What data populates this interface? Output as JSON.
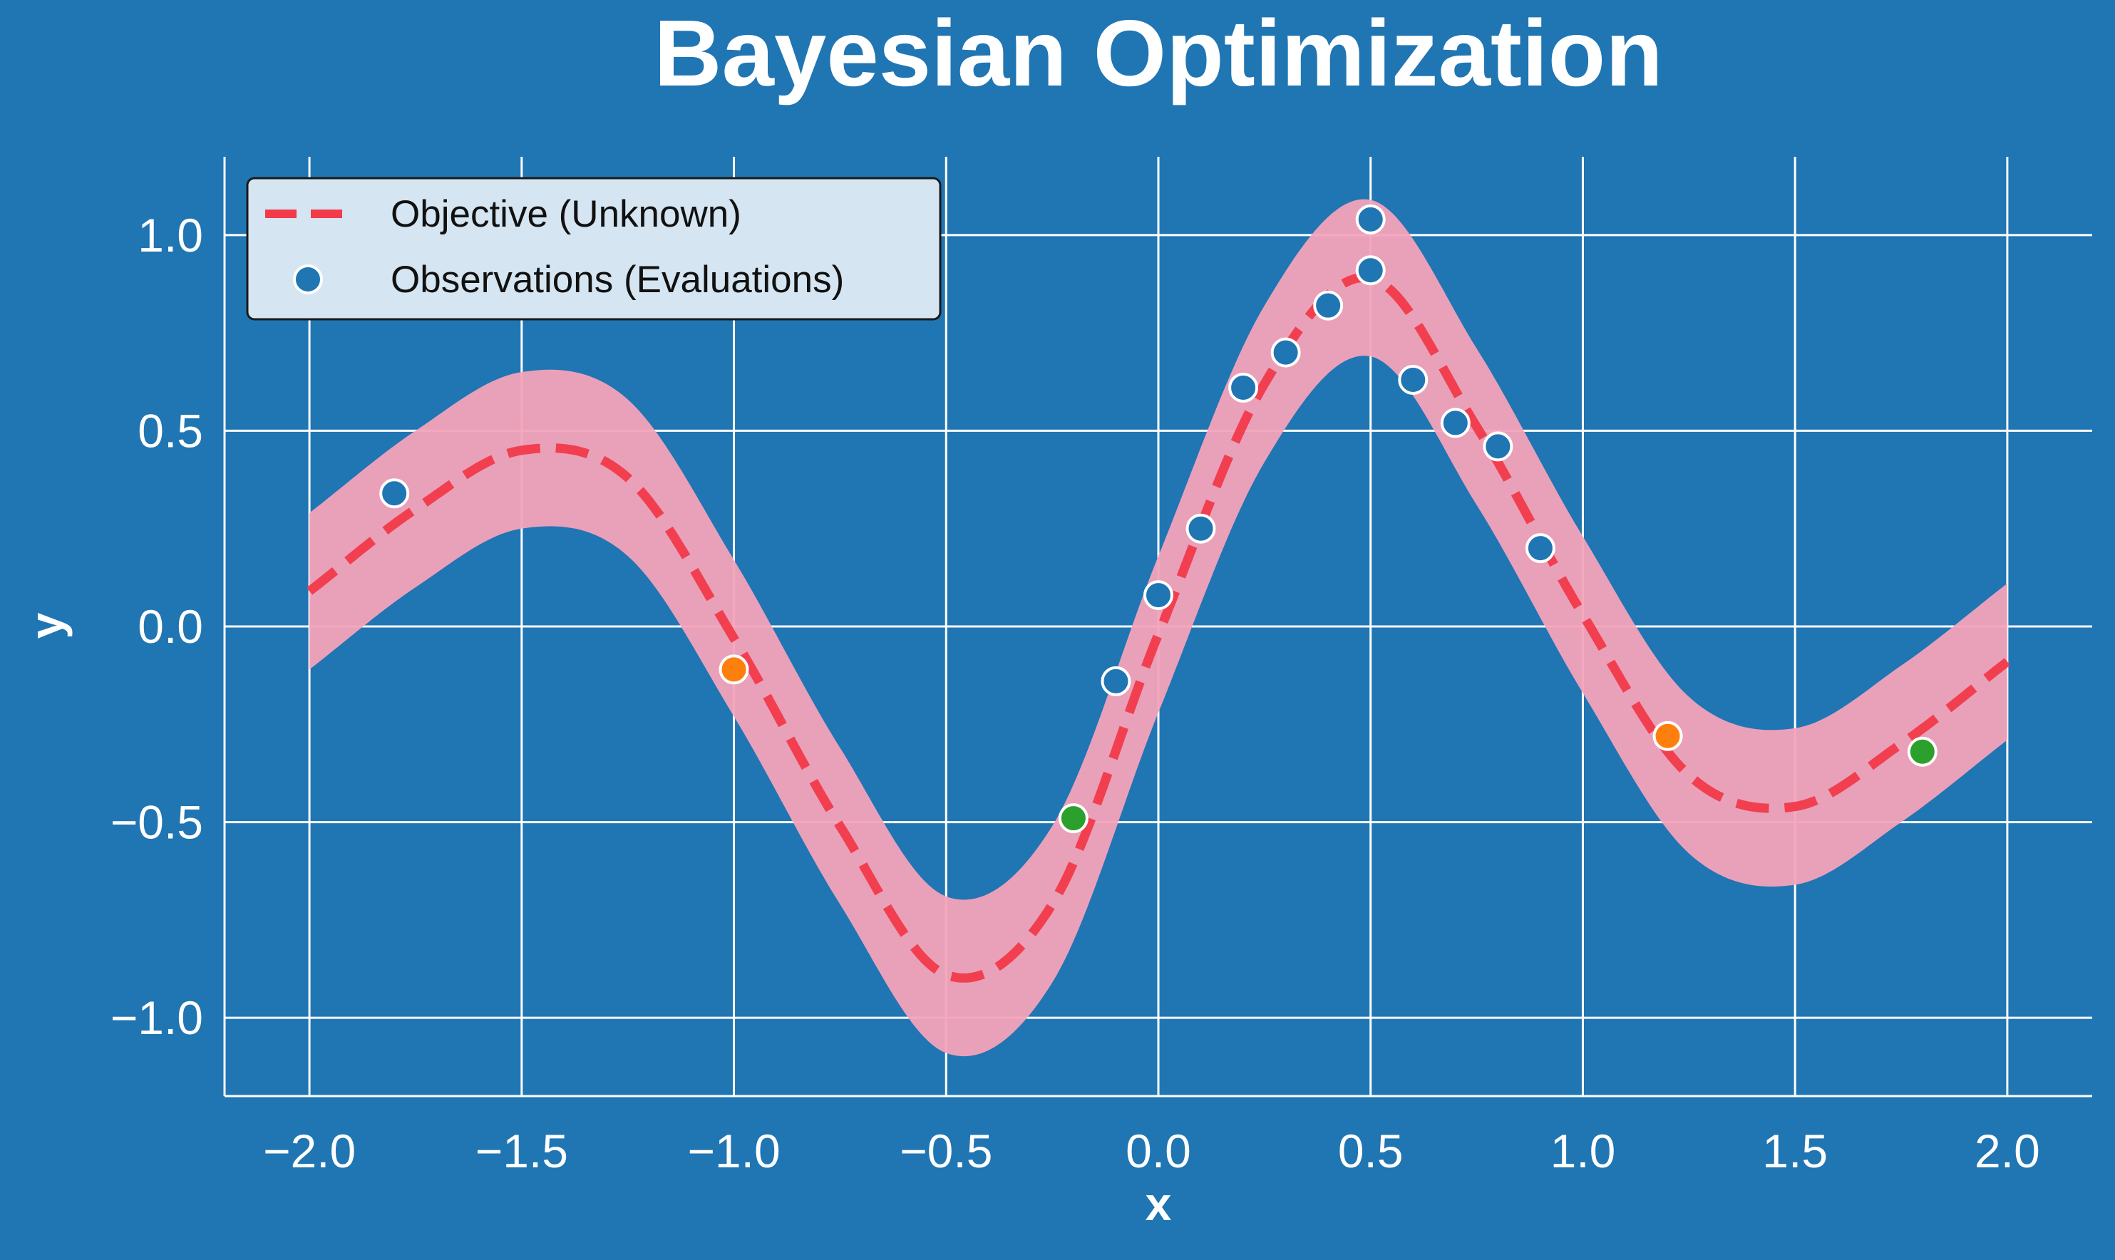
{
  "chart_data": {
    "type": "line",
    "title": "Bayesian Optimization",
    "xlabel": "x",
    "ylabel": "y",
    "xlim": [
      -2.2,
      2.2
    ],
    "ylim": [
      -1.2,
      1.2
    ],
    "x_ticks": [
      -2.0,
      -1.5,
      -1.0,
      -0.5,
      0.0,
      0.5,
      1.0,
      1.5,
      2.0
    ],
    "x_tick_labels": [
      "−2.0",
      "−1.5",
      "−1.0",
      "−0.5",
      "0.0",
      "0.5",
      "1.0",
      "1.5",
      "2.0"
    ],
    "y_ticks": [
      -1.0,
      -0.5,
      0.0,
      0.5,
      1.0
    ],
    "y_tick_labels": [
      "−1.0",
      "−0.5",
      "0.0",
      "0.5",
      "1.0"
    ],
    "grid": true,
    "legend_position": "top-left",
    "legend": [
      {
        "label": "Objective (Unknown)",
        "marker": "dashed-line",
        "color": "#f23a4a"
      },
      {
        "label": "Observations (Evaluations)",
        "marker": "circle",
        "color": "#2075b3"
      }
    ],
    "objective": {
      "x_range": [
        -2.0,
        2.0
      ],
      "band_halfwidth": 0.2,
      "line_color": "#f23a4a",
      "band_color": "#f4a3bb",
      "x": [
        -2.0,
        -1.75,
        -1.5,
        -1.25,
        -1.0,
        -0.75,
        -0.5,
        -0.25,
        0.0,
        0.25,
        0.5,
        0.75,
        1.0,
        1.25,
        1.5,
        1.75,
        2.0
      ],
      "y": [
        0.09,
        0.3,
        0.45,
        0.38,
        -0.03,
        -0.51,
        -0.89,
        -0.71,
        -0.02,
        0.62,
        0.89,
        0.51,
        0.03,
        -0.38,
        -0.46,
        -0.3,
        -0.09
      ]
    },
    "observations": [
      {
        "x": -1.8,
        "y": 0.34,
        "color": "#2075b3"
      },
      {
        "x": -1.0,
        "y": -0.11,
        "color": "#ff7f0e"
      },
      {
        "x": -0.2,
        "y": -0.49,
        "color": "#2ca02c"
      },
      {
        "x": -0.1,
        "y": -0.14,
        "color": "#2075b3"
      },
      {
        "x": 0.0,
        "y": 0.08,
        "color": "#2075b3"
      },
      {
        "x": 0.1,
        "y": 0.25,
        "color": "#2075b3"
      },
      {
        "x": 0.2,
        "y": 0.61,
        "color": "#2075b3"
      },
      {
        "x": 0.3,
        "y": 0.7,
        "color": "#2075b3"
      },
      {
        "x": 0.4,
        "y": 0.82,
        "color": "#2075b3"
      },
      {
        "x": 0.5,
        "y": 1.04,
        "color": "#2075b3"
      },
      {
        "x": 0.5,
        "y": 0.91,
        "color": "#2075b3"
      },
      {
        "x": 0.6,
        "y": 0.63,
        "color": "#2075b3"
      },
      {
        "x": 0.7,
        "y": 0.52,
        "color": "#2075b3"
      },
      {
        "x": 0.8,
        "y": 0.46,
        "color": "#2075b3"
      },
      {
        "x": 0.9,
        "y": 0.2,
        "color": "#2075b3"
      },
      {
        "x": 1.2,
        "y": -0.28,
        "color": "#ff7f0e"
      },
      {
        "x": 1.8,
        "y": -0.32,
        "color": "#2ca02c"
      }
    ],
    "colors": {
      "background": "#2075b3",
      "grid": "#ffffff",
      "text": "#ffffff",
      "legend_bg": "#d5e5f1",
      "legend_border": "#1a1a1a",
      "legend_text": "#111111",
      "marker_edge": "#ffffff"
    }
  }
}
